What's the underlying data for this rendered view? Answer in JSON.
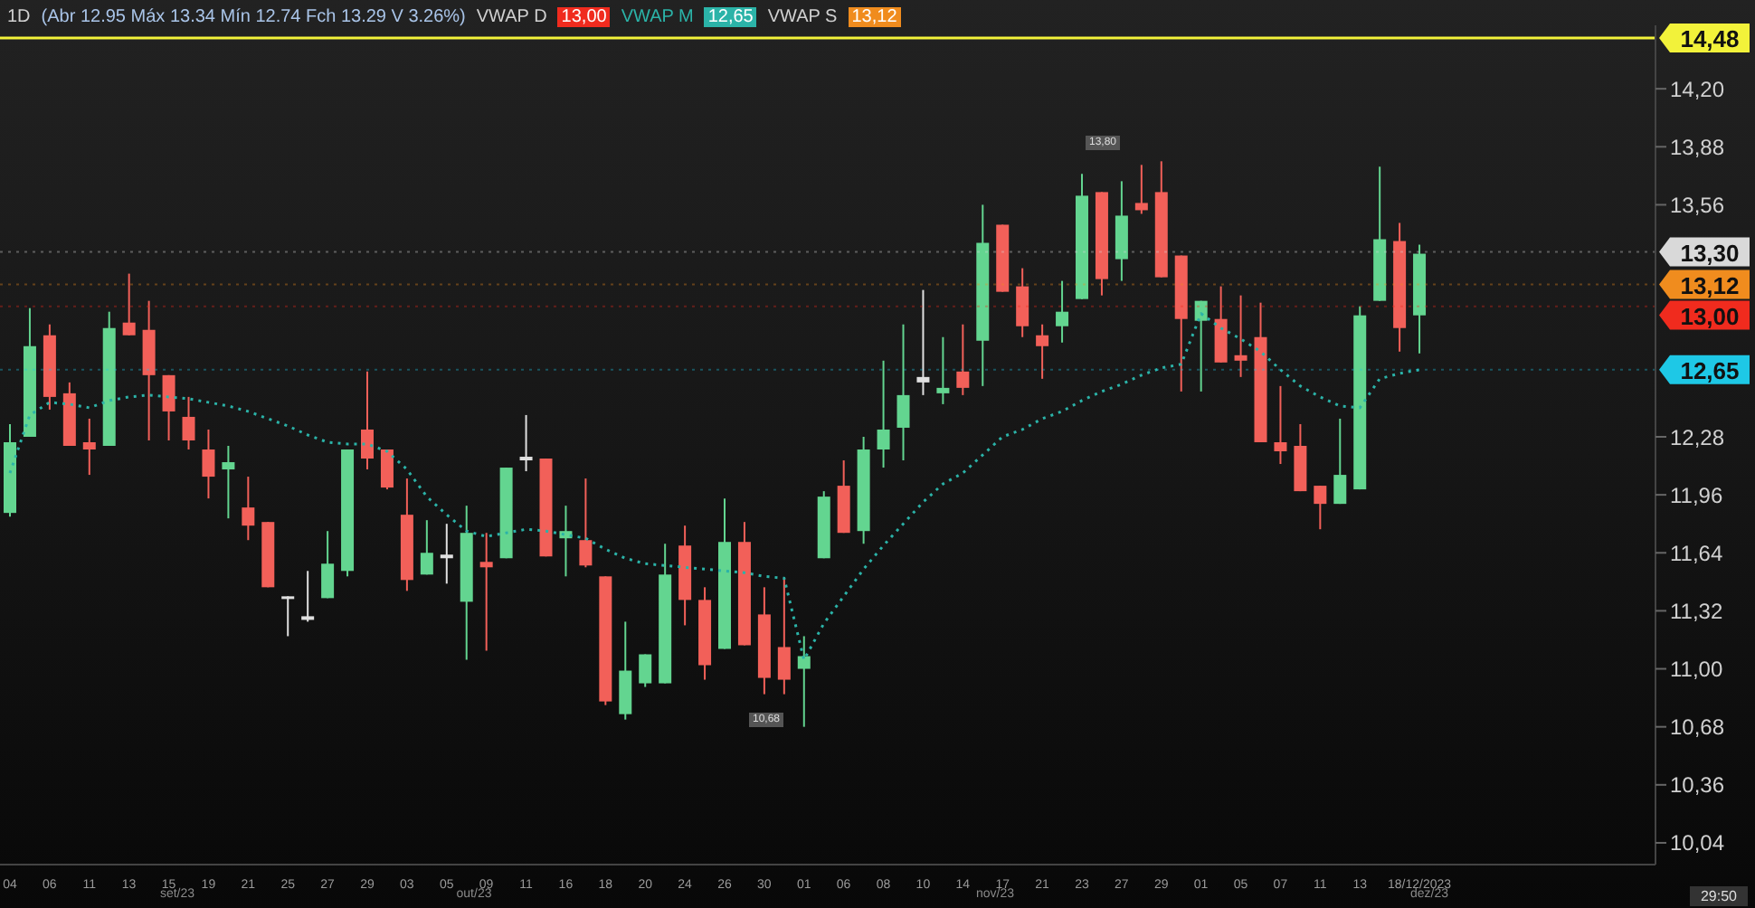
{
  "chart_data": {
    "type": "candlestick",
    "legend": "top",
    "annotations": [
      "1D",
      "(Abr 12.95 Máx 13.34 Mín 12.74 Fch 13.29 V 3.26%)",
      "VWAP D",
      "VWAP S",
      "13,80",
      "10,68",
      "set/23",
      "out/23",
      "nov/23",
      "dez/23",
      "29:50"
    ],
    "categories": [
      "04",
      null,
      "06",
      null,
      "11",
      null,
      "13",
      null,
      "15",
      null,
      "19",
      null,
      "21",
      null,
      "25",
      null,
      "27",
      null,
      "29",
      null,
      "03",
      null,
      "05",
      null,
      "09",
      null,
      "11",
      null,
      "16",
      null,
      "18",
      null,
      "20",
      null,
      "24",
      null,
      "26",
      null,
      "30",
      null,
      "01",
      null,
      "06",
      null,
      "08",
      null,
      "10",
      null,
      "14",
      null,
      "17",
      null,
      "21",
      null,
      "23",
      null,
      "27",
      null,
      "29",
      null,
      "01",
      null,
      "05",
      null,
      "07",
      null,
      "11",
      null,
      "13",
      null,
      null,
      "18/12/2023"
    ],
    "ohlc": [
      [
        11.86,
        12.35,
        11.84,
        12.25
      ],
      [
        12.28,
        12.99,
        12.28,
        12.78
      ],
      [
        12.84,
        12.9,
        12.43,
        12.5
      ],
      [
        12.52,
        12.58,
        12.23,
        12.23
      ],
      [
        12.25,
        12.38,
        12.07,
        12.21
      ],
      [
        12.23,
        12.97,
        12.23,
        12.88
      ],
      [
        12.91,
        13.18,
        12.84,
        12.84
      ],
      [
        12.87,
        13.03,
        12.26,
        12.62
      ],
      [
        12.62,
        12.62,
        12.26,
        12.42
      ],
      [
        12.39,
        12.5,
        12.21,
        12.26
      ],
      [
        12.21,
        12.32,
        11.94,
        12.06
      ],
      [
        12.1,
        12.23,
        11.83,
        12.14
      ],
      [
        11.89,
        12.06,
        11.71,
        11.79
      ],
      [
        11.81,
        11.81,
        11.45,
        11.45
      ],
      [
        11.4,
        11.4,
        11.18,
        11.39
      ],
      [
        11.27,
        11.54,
        11.26,
        11.29
      ],
      [
        11.39,
        11.76,
        11.39,
        11.58
      ],
      [
        11.54,
        12.21,
        11.51,
        12.21
      ],
      [
        12.32,
        12.64,
        12.1,
        12.16
      ],
      [
        12.21,
        12.21,
        11.99,
        12.0
      ],
      [
        11.85,
        12.05,
        11.43,
        11.49
      ],
      [
        11.52,
        11.82,
        11.52,
        11.64
      ],
      [
        11.61,
        11.8,
        11.47,
        11.63
      ],
      [
        11.37,
        11.9,
        11.05,
        11.75
      ],
      [
        11.59,
        11.75,
        11.1,
        11.56
      ],
      [
        11.61,
        12.11,
        11.61,
        12.11
      ],
      [
        12.15,
        12.4,
        12.09,
        12.17
      ],
      [
        12.16,
        12.16,
        11.62,
        11.62
      ],
      [
        11.72,
        11.9,
        11.51,
        11.76
      ],
      [
        11.71,
        12.05,
        11.56,
        11.57
      ],
      [
        11.51,
        11.51,
        10.8,
        10.82
      ],
      [
        10.75,
        11.26,
        10.72,
        10.99
      ],
      [
        10.92,
        11.08,
        10.9,
        11.08
      ],
      [
        10.92,
        11.69,
        10.92,
        11.52
      ],
      [
        11.68,
        11.79,
        11.24,
        11.38
      ],
      [
        11.38,
        11.45,
        10.94,
        11.02
      ],
      [
        11.11,
        11.94,
        11.11,
        11.7
      ],
      [
        11.7,
        11.81,
        11.13,
        11.13
      ],
      [
        11.3,
        11.45,
        10.86,
        10.95
      ],
      [
        11.12,
        11.5,
        10.86,
        10.94
      ],
      [
        11.0,
        11.18,
        10.68,
        11.07
      ],
      [
        11.61,
        11.98,
        11.61,
        11.95
      ],
      [
        12.01,
        12.15,
        11.75,
        11.75
      ],
      [
        11.76,
        12.28,
        11.69,
        12.21
      ],
      [
        12.21,
        12.7,
        12.11,
        12.32
      ],
      [
        12.33,
        12.9,
        12.15,
        12.51
      ],
      [
        12.58,
        13.09,
        12.51,
        12.61
      ],
      [
        12.52,
        12.83,
        12.46,
        12.55
      ],
      [
        12.64,
        12.9,
        12.51,
        12.55
      ],
      [
        12.81,
        13.56,
        12.56,
        13.35
      ],
      [
        13.45,
        13.45,
        13.08,
        13.08
      ],
      [
        13.11,
        13.21,
        12.83,
        12.89
      ],
      [
        12.84,
        12.9,
        12.6,
        12.78
      ],
      [
        12.89,
        13.14,
        12.8,
        12.97
      ],
      [
        13.04,
        13.73,
        13.04,
        13.61
      ],
      [
        13.63,
        13.63,
        13.06,
        13.15
      ],
      [
        13.26,
        13.69,
        13.14,
        13.5
      ],
      [
        13.57,
        13.78,
        13.51,
        13.53
      ],
      [
        13.63,
        13.8,
        13.16,
        13.16
      ],
      [
        13.28,
        13.28,
        12.53,
        12.93
      ],
      [
        12.92,
        13.03,
        12.53,
        13.03
      ],
      [
        12.93,
        13.11,
        12.69,
        12.69
      ],
      [
        12.73,
        13.06,
        12.61,
        12.7
      ],
      [
        12.83,
        13.02,
        12.25,
        12.25
      ],
      [
        12.25,
        12.56,
        12.13,
        12.2
      ],
      [
        12.23,
        12.35,
        11.98,
        11.98
      ],
      [
        12.01,
        12.01,
        11.77,
        11.91
      ],
      [
        11.91,
        12.38,
        11.91,
        12.07
      ],
      [
        11.99,
        13.0,
        11.99,
        12.95
      ],
      [
        13.03,
        13.77,
        13.03,
        13.37
      ],
      [
        13.36,
        13.46,
        12.75,
        12.88
      ],
      [
        12.95,
        13.34,
        12.74,
        13.29
      ]
    ],
    "colors": [
      "#63d590",
      "#63d590",
      "#f26059",
      "#f26059",
      "#f26059",
      "#63d590",
      "#f26059",
      "#f26059",
      "#f26059",
      "#f26059",
      "#f26059",
      "#63d590",
      "#f26059",
      "#f26059",
      "#e0e0e0",
      "#e0e0e0",
      "#63d590",
      "#63d590",
      "#f26059",
      "#f26059",
      "#f26059",
      "#63d590",
      "#e0e0e0",
      "#63d590",
      "#f26059",
      "#63d590",
      "#e0e0e0",
      "#f26059",
      "#63d590",
      "#f26059",
      "#f26059",
      "#63d590",
      "#63d590",
      "#63d590",
      "#f26059",
      "#f26059",
      "#63d590",
      "#f26059",
      "#f26059",
      "#f26059",
      "#63d590",
      "#63d590",
      "#f26059",
      "#63d590",
      "#63d590",
      "#63d590",
      "#e0e0e0",
      "#63d590",
      "#f26059",
      "#63d590",
      "#f26059",
      "#f26059",
      "#f26059",
      "#63d590",
      "#63d590",
      "#f26059",
      "#63d590",
      "#f26059",
      "#f26059",
      "#f26059",
      "#63d590",
      "#f26059",
      "#f26059",
      "#f26059",
      "#f26059",
      "#f26059",
      "#f26059",
      "#63d590",
      "#63d590",
      "#63d590",
      "#f26059",
      "#63d590"
    ],
    "series": [
      {
        "name": "VWAP M",
        "type": "line",
        "color": "#2bb3a8",
        "line_style": "dotted",
        "values": [
          12.08,
          12.4,
          12.47,
          12.46,
          12.44,
          12.48,
          12.5,
          12.51,
          12.5,
          12.49,
          12.47,
          12.45,
          12.42,
          12.38,
          12.34,
          12.29,
          12.25,
          12.24,
          12.24,
          12.2,
          12.1,
          11.95,
          11.85,
          11.76,
          11.73,
          11.75,
          11.77,
          11.76,
          11.74,
          11.72,
          11.66,
          11.61,
          11.58,
          11.57,
          11.56,
          11.55,
          11.54,
          11.53,
          11.51,
          11.5,
          11.05,
          11.25,
          11.4,
          11.55,
          11.68,
          11.8,
          11.92,
          12.02,
          12.08,
          12.18,
          12.28,
          12.32,
          12.38,
          12.42,
          12.48,
          12.53,
          12.57,
          12.62,
          12.66,
          12.68,
          12.96,
          12.88,
          12.82,
          12.75,
          12.65,
          12.56,
          12.5,
          12.45,
          12.44,
          12.6,
          12.63,
          12.65
        ]
      }
    ],
    "ylim": [
      9.92,
      14.55
    ],
    "yticks": [
      {
        "value": 14.2,
        "label": "14,20"
      },
      {
        "value": 13.88,
        "label": "13,88"
      },
      {
        "value": 13.56,
        "label": "13,56"
      },
      {
        "value": 12.28,
        "label": "12,28"
      },
      {
        "value": 11.96,
        "label": "11,96"
      },
      {
        "value": 11.64,
        "label": "11,64"
      },
      {
        "value": 11.32,
        "label": "11,32"
      },
      {
        "value": 11.0,
        "label": "11,00"
      },
      {
        "value": 10.68,
        "label": "10,68"
      },
      {
        "value": 10.36,
        "label": "10,36"
      },
      {
        "value": 10.04,
        "label": "10,04"
      }
    ],
    "ref_lines": [
      {
        "axis": "y",
        "value": 14.48,
        "label": "14,48",
        "color": "#f2f23a",
        "line_style": "solid"
      },
      {
        "axis": "y",
        "value": 13.3,
        "label": "13,30",
        "color": "#d9d9d9"
      },
      {
        "axis": "y",
        "value": 13.12,
        "label": "13,12",
        "color": "#f08c1e"
      },
      {
        "axis": "y",
        "value": 13.0,
        "label": "13,00",
        "color": "#f02b1e"
      },
      {
        "axis": "y",
        "value": 12.65,
        "label": "12,65",
        "color": "#1ec8e6"
      }
    ]
  }
}
